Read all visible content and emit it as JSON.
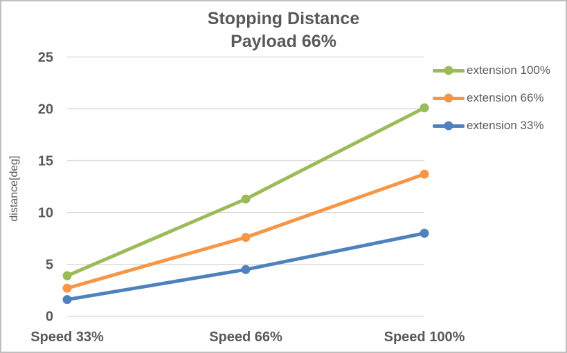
{
  "title": {
    "line1": "Stopping Distance",
    "line2": "Payload 66%"
  },
  "chart_data": {
    "type": "line",
    "title": "Stopping Distance Payload 66%",
    "categories": [
      "Speed 33%",
      "Speed 66%",
      "Speed 100%"
    ],
    "series": [
      {
        "name": "extension 100%",
        "color": "#9BBB59",
        "values": [
          3.9,
          11.3,
          20.1
        ]
      },
      {
        "name": "extension 66%",
        "color": "#F79646",
        "values": [
          2.7,
          7.6,
          13.7
        ]
      },
      {
        "name": "extension 33%",
        "color": "#4F81BD",
        "values": [
          1.6,
          4.5,
          8.0
        ]
      }
    ],
    "xlabel": "",
    "ylabel": "distance[deg]",
    "ylim": [
      0,
      25
    ],
    "yticks": [
      0,
      5,
      10,
      15,
      20,
      25
    ],
    "grid": true,
    "legend_position": "right",
    "marker": "circle",
    "colors": {
      "text": "#595959",
      "grid": "#D9D9D9",
      "frame_border": "#BFBFBF"
    }
  }
}
